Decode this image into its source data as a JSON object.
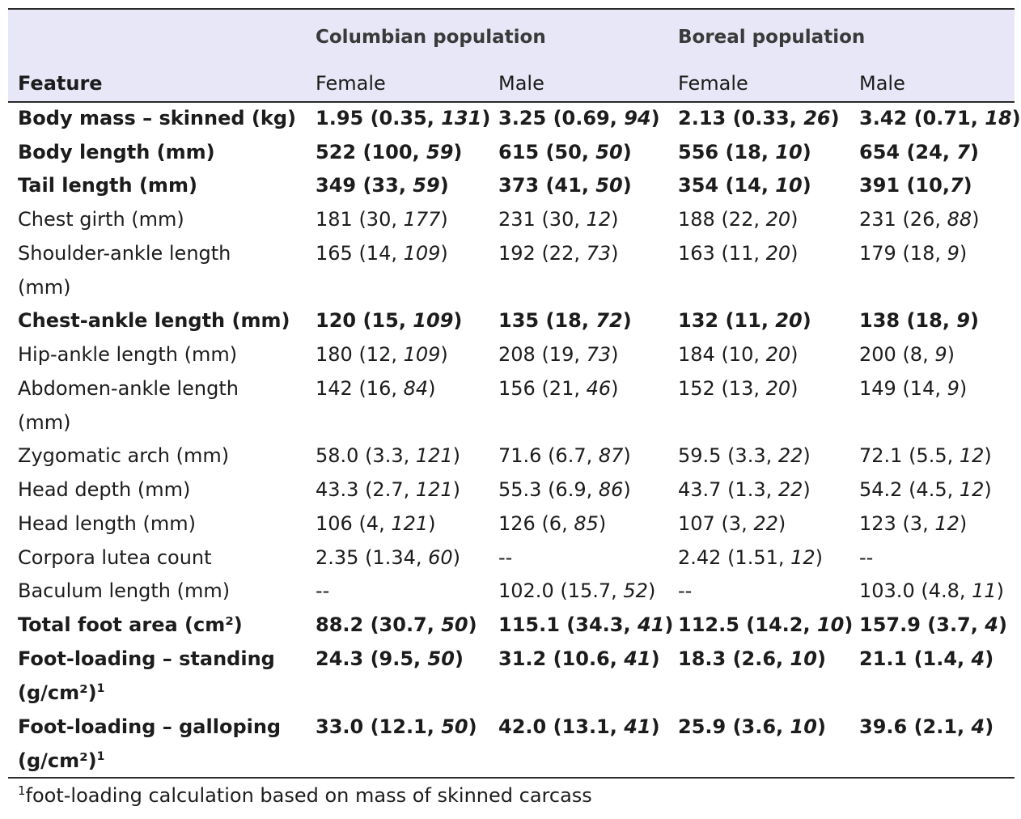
{
  "header": {
    "group1": "Columbian population",
    "group2": "Boreal population",
    "feature": "Feature",
    "female1": "Female",
    "male1": "Male",
    "female2": "Female",
    "male2": "Male"
  },
  "rows": [
    {
      "bold": true,
      "label": "Body mass – skinned (kg)",
      "label2": "",
      "sup": "",
      "cells": [
        {
          "a": "1.95 (0.35, ",
          "n": "131",
          "z": ")"
        },
        {
          "a": "3.25 (0.69, ",
          "n": "94",
          "z": ")"
        },
        {
          "a": "2.13 (0.33, ",
          "n": "26",
          "z": ")"
        },
        {
          "a": "3.42 (0.71, ",
          "n": "18",
          "z": ")"
        }
      ]
    },
    {
      "bold": true,
      "label": "Body length (mm)",
      "label2": "",
      "sup": "",
      "cells": [
        {
          "a": "522 (100, ",
          "n": "59",
          "z": ")"
        },
        {
          "a": "615 (50, ",
          "n": "50",
          "z": ")"
        },
        {
          "a": "556 (18, ",
          "n": "10",
          "z": ")"
        },
        {
          "a": "654 (24, ",
          "n": "7",
          "z": ")"
        }
      ]
    },
    {
      "bold": true,
      "label": "Tail length (mm)",
      "label2": "",
      "sup": "",
      "cells": [
        {
          "a": "349 (33, ",
          "n": "59",
          "z": ")"
        },
        {
          "a": "373 (41, ",
          "n": "50",
          "z": ")"
        },
        {
          "a": "354 (14, ",
          "n": "10",
          "z": ")"
        },
        {
          "a": "391 (10,",
          "n": "7",
          "z": ")"
        }
      ]
    },
    {
      "bold": false,
      "label": "Chest girth (mm)",
      "label2": "",
      "sup": "",
      "cells": [
        {
          "a": "181 (30, ",
          "n": "177",
          "z": ")"
        },
        {
          "a": "231 (30, ",
          "n": "12",
          "z": ")"
        },
        {
          "a": "188 (22, ",
          "n": "20",
          "z": ")"
        },
        {
          "a": "231 (26, ",
          "n": "88",
          "z": ")"
        }
      ]
    },
    {
      "bold": false,
      "label": "Shoulder-ankle length",
      "label2": "(mm)",
      "sup": "",
      "cells": [
        {
          "a": "165 (14, ",
          "n": "109",
          "z": ")"
        },
        {
          "a": "192 (22, ",
          "n": "73",
          "z": ")"
        },
        {
          "a": "163 (11, ",
          "n": "20",
          "z": ")"
        },
        {
          "a": "179 (18, ",
          "n": "9",
          "z": ")"
        }
      ]
    },
    {
      "bold": true,
      "label": "Chest-ankle length (mm)",
      "label2": "",
      "sup": "",
      "cells": [
        {
          "a": "120 (15, ",
          "n": "109",
          "z": ")"
        },
        {
          "a": "135 (18, ",
          "n": "72",
          "z": ")"
        },
        {
          "a": "132 (11, ",
          "n": "20",
          "z": ")"
        },
        {
          "a": "138 (18, ",
          "n": "9",
          "z": ")"
        }
      ]
    },
    {
      "bold": false,
      "label": "Hip-ankle length (mm)",
      "label2": "",
      "sup": "",
      "cells": [
        {
          "a": "180 (12, ",
          "n": "109",
          "z": ")"
        },
        {
          "a": "208 (19, ",
          "n": "73",
          "z": ")"
        },
        {
          "a": "184 (10, ",
          "n": "20",
          "z": ")"
        },
        {
          "a": "200 (8, ",
          "n": "9",
          "z": ")"
        }
      ]
    },
    {
      "bold": false,
      "label": "Abdomen-ankle length",
      "label2": "(mm)",
      "sup": "",
      "cells": [
        {
          "a": "142 (16, ",
          "n": "84",
          "z": ")"
        },
        {
          "a": "156 (21, ",
          "n": "46",
          "z": ")"
        },
        {
          "a": "152 (13, ",
          "n": "20",
          "z": ")"
        },
        {
          "a": "149 (14, ",
          "n": "9",
          "z": ")"
        }
      ]
    },
    {
      "bold": false,
      "label": "Zygomatic arch (mm)",
      "label2": "",
      "sup": "",
      "cells": [
        {
          "a": "58.0 (3.3, ",
          "n": "121",
          "z": ")"
        },
        {
          "a": "71.6 (6.7, ",
          "n": "87",
          "z": ")"
        },
        {
          "a": "59.5 (3.3, ",
          "n": "22",
          "z": ")"
        },
        {
          "a": "72.1 (5.5, ",
          "n": "12",
          "z": ")"
        }
      ]
    },
    {
      "bold": false,
      "label": "Head depth (mm)",
      "label2": "",
      "sup": "",
      "cells": [
        {
          "a": "43.3 (2.7, ",
          "n": "121",
          "z": ")"
        },
        {
          "a": "55.3 (6.9, ",
          "n": "86",
          "z": ")"
        },
        {
          "a": "43.7 (1.3, ",
          "n": "22",
          "z": ")"
        },
        {
          "a": "54.2 (4.5, ",
          "n": "12",
          "z": ")"
        }
      ]
    },
    {
      "bold": false,
      "label": "Head length (mm)",
      "label2": "",
      "sup": "",
      "cells": [
        {
          "a": "106 (4, ",
          "n": "121",
          "z": ")"
        },
        {
          "a": "126 (6, ",
          "n": "85",
          "z": ")"
        },
        {
          "a": "107 (3, ",
          "n": "22",
          "z": ")"
        },
        {
          "a": "123 (3, ",
          "n": "12",
          "z": ")"
        }
      ]
    },
    {
      "bold": false,
      "label": "Corpora lutea count",
      "label2": "",
      "sup": "",
      "cells": [
        {
          "a": "2.35 (1.34, ",
          "n": "60",
          "z": ")"
        },
        {
          "a": "--",
          "n": "",
          "z": ""
        },
        {
          "a": "2.42 (1.51, ",
          "n": "12",
          "z": ")"
        },
        {
          "a": "--",
          "n": "",
          "z": ""
        }
      ]
    },
    {
      "bold": false,
      "label": "Baculum length (mm)",
      "label2": "",
      "sup": "",
      "cells": [
        {
          "a": "--",
          "n": "",
          "z": ""
        },
        {
          "a": "102.0 (15.7, ",
          "n": "52",
          "z": ")"
        },
        {
          "a": "--",
          "n": "",
          "z": ""
        },
        {
          "a": "103.0 (4.8, ",
          "n": "11",
          "z": ")"
        }
      ]
    },
    {
      "bold": true,
      "label": "Total foot area (cm²)",
      "label2": "",
      "sup": "",
      "cells": [
        {
          "a": "88.2 (30.7, ",
          "n": "50",
          "z": ")"
        },
        {
          "a": "115.1 (34.3, ",
          "n": "41",
          "z": ")"
        },
        {
          "a": "112.5 (14.2, ",
          "n": "10",
          "z": ")"
        },
        {
          "a": "157.9 (3.7, ",
          "n": "4",
          "z": ")"
        }
      ]
    },
    {
      "bold": true,
      "label": "Foot-loading – standing",
      "label2": "(g/cm²)",
      "sup": "1",
      "cells": [
        {
          "a": "24.3 (9.5, ",
          "n": "50",
          "z": ")"
        },
        {
          "a": "31.2 (10.6, ",
          "n": "41",
          "z": ")"
        },
        {
          "a": "18.3 (2.6, ",
          "n": "10",
          "z": ")"
        },
        {
          "a": "21.1 (1.4, ",
          "n": "4",
          "z": ")"
        }
      ]
    },
    {
      "bold": true,
      "label": "Foot-loading –  galloping",
      "label2": "(g/cm²)",
      "sup": "1",
      "cells": [
        {
          "a": "33.0 (12.1, ",
          "n": "50",
          "z": ")"
        },
        {
          "a": "42.0 (13.1, ",
          "n": "41",
          "z": ")"
        },
        {
          "a": "25.9 (3.6, ",
          "n": "10",
          "z": ")"
        },
        {
          "a": "39.6 (2.1, ",
          "n": "4",
          "z": ")"
        }
      ]
    }
  ],
  "footnote": {
    "mark": "1",
    "text": "foot-loading calculation based on mass of skinned carcass"
  }
}
